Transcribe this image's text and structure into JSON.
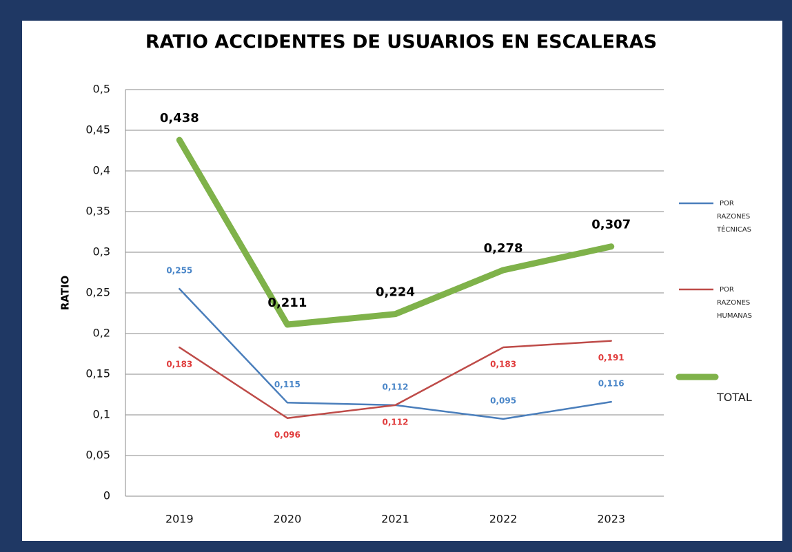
{
  "chart_data": {
    "type": "line",
    "title": "RATIO ACCIDENTES DE USUARIOS EN ESCALERAS",
    "y_label": "RATIO",
    "categories": [
      "2019",
      "2020",
      "2021",
      "2022",
      "2023"
    ],
    "series": [
      {
        "name": "POR RAZONES TÉCNICAS",
        "color": "#4a7ebb",
        "label_color": "#4a86c8",
        "values": [
          0.255,
          0.115,
          0.112,
          0.095,
          0.116
        ],
        "value_labels": [
          "0,255",
          "0,115",
          "0,112",
          "0,095",
          "0,116"
        ]
      },
      {
        "name": "POR RAZONES HUMANAS",
        "color": "#be4b48",
        "label_color": "#e03c3c",
        "values": [
          0.183,
          0.096,
          0.112,
          0.183,
          0.191
        ],
        "value_labels": [
          "0,183",
          "0,096",
          "0,112",
          "0,183",
          "0,191"
        ]
      },
      {
        "name": "TOTAL",
        "color": "#7fb24a",
        "label_color": "#000000",
        "values": [
          0.438,
          0.211,
          0.224,
          0.278,
          0.307
        ],
        "value_labels": [
          "0,438",
          "0,211",
          "0,224",
          "0,278",
          "0,307"
        ]
      }
    ],
    "ylim": [
      0,
      0.5
    ],
    "yticks": [
      0,
      {
        "value": 0.05,
        "label": "0,05"
      },
      {
        "value": 0.1,
        "label": "0,1"
      },
      {
        "value": 0.15,
        "label": "0,15"
      },
      {
        "value": 0.2,
        "label": "0,2"
      },
      {
        "value": 0.25,
        "label": "0,25"
      },
      {
        "value": 0.3,
        "label": "0,3"
      },
      {
        "value": 0.35,
        "label": "0,35"
      },
      {
        "value": 0.4,
        "label": "0,4"
      },
      {
        "value": 0.45,
        "label": "0,45"
      },
      {
        "value": 0.5,
        "label": "0,5"
      }
    ],
    "grid": true
  }
}
